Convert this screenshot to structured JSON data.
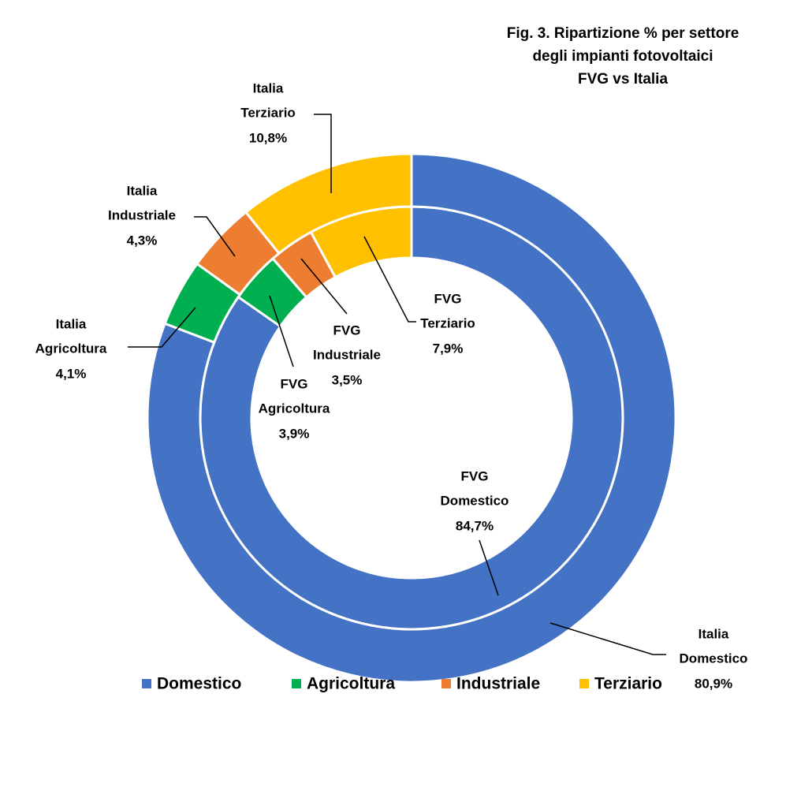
{
  "chart_data": {
    "type": "donut",
    "title": [
      "Fig. 3. Ripartizione % per settore",
      "degli impianti fotovoltaici",
      "FVG vs Italia"
    ],
    "categories": [
      "Domestico",
      "Agricoltura",
      "Industriale",
      "Terziario"
    ],
    "colors": [
      "#4472c4",
      "#00b050",
      "#ed7d31",
      "#ffc000"
    ],
    "series": [
      {
        "name": "FVG",
        "values": [
          84.7,
          3.9,
          3.5,
          7.9
        ],
        "value_labels": [
          "84,7%",
          "3,9%",
          "3,5%",
          "7,9%"
        ]
      },
      {
        "name": "Italia",
        "values": [
          80.9,
          4.1,
          4.3,
          10.8
        ],
        "value_labels": [
          "80,9%",
          "4,1%",
          "4,3%",
          "10,8%"
        ]
      }
    ],
    "legend": "bottom"
  }
}
